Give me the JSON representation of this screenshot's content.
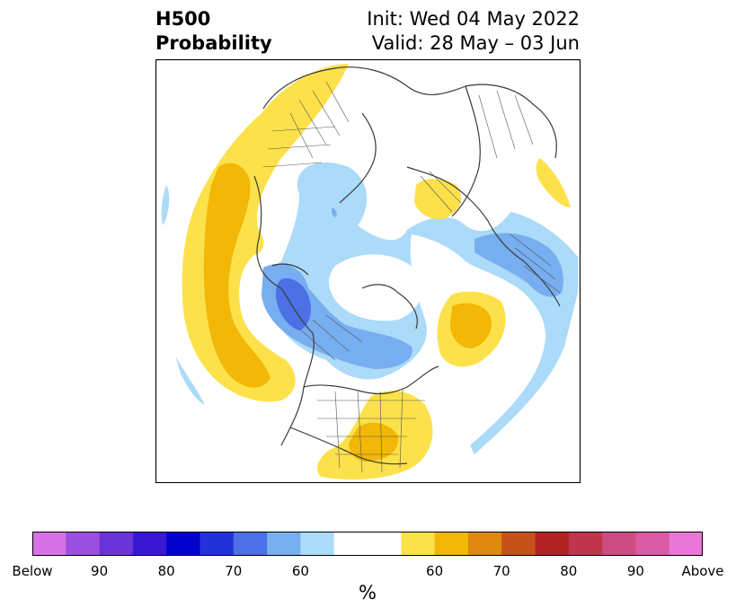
{
  "header": {
    "title_line1": "H500",
    "title_line2": "Probability",
    "init_text": "Init: Wed 04 May 2022",
    "valid_text": "Valid: 28 May – 03 Jun"
  },
  "colorbar": {
    "unit": "%",
    "colors": [
      "#d672e6",
      "#9b4fe0",
      "#6a35d8",
      "#3a18d2",
      "#0202cc",
      "#2232d8",
      "#4c70e5",
      "#76aef0",
      "#acdaf9",
      "#ffffff",
      "#ffffff",
      "#fde14a",
      "#f2b707",
      "#de880e",
      "#c5521a",
      "#b12224",
      "#c0354e",
      "#cc4b80",
      "#db5aa4",
      "#e877d8"
    ],
    "tick_labels": [
      "Below",
      "90",
      "80",
      "70",
      "60",
      "60",
      "70",
      "80",
      "90",
      "Above"
    ]
  },
  "map": {
    "projection": "north-polar stereographic",
    "legend_colors": {
      "below_light": "#acdaf9",
      "below_mid": "#76aef0",
      "below_dark": "#4c70e5",
      "above_light": "#fde14a",
      "above_mid": "#f2b707"
    }
  }
}
